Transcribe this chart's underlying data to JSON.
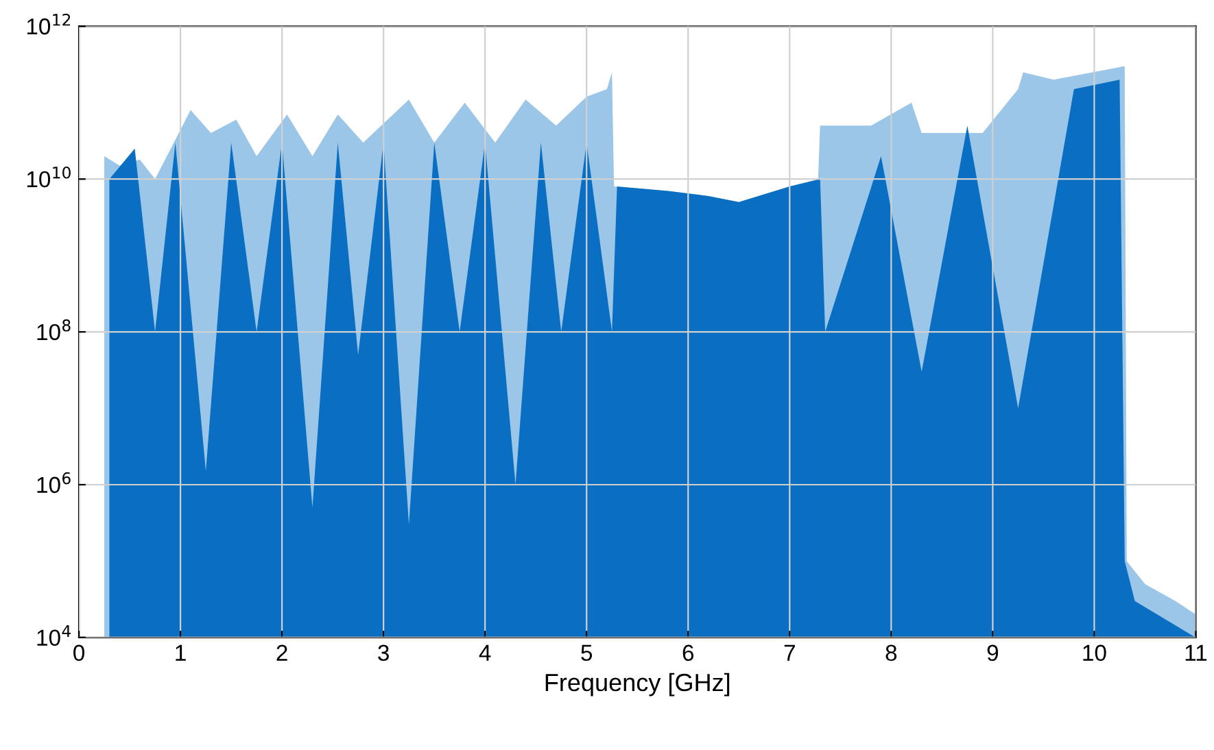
{
  "chart_data": {
    "type": "area",
    "xlabel": "Frequency [GHz]",
    "log": "y",
    "grid": true,
    "xlim": [
      0,
      11
    ],
    "xticks": [
      0,
      1,
      2,
      3,
      4,
      5,
      6,
      7,
      8,
      9,
      10,
      11
    ],
    "ylim": [
      10000,
      1000000000000
    ],
    "yticks": [
      {
        "value": 10000,
        "label": "10$^{4}$"
      },
      {
        "value": 1000000,
        "label": "10$^{6}$"
      },
      {
        "value": 100000000,
        "label": "10$^{8}$"
      },
      {
        "value": 10000000000,
        "label": "10$^{10}$"
      },
      {
        "value": 1000000000000,
        "label": "10$^{12}$"
      }
    ],
    "series": [
      {
        "color": "#9cc6e8",
        "x": [
          0.25,
          0.4,
          0.6,
          0.75,
          1.1,
          1.3,
          1.55,
          1.75,
          2.05,
          2.3,
          2.55,
          2.8,
          3.25,
          3.5,
          3.8,
          4.1,
          4.4,
          4.7,
          5.0,
          5.2,
          5.25,
          5.27,
          5.8,
          6.2,
          6.5,
          7.0,
          7.28,
          7.3,
          7.8,
          8.2,
          8.3,
          8.9,
          9.25,
          9.3,
          9.6,
          10.3,
          10.32,
          10.5,
          10.8,
          11.0
        ],
        "values": [
          20000000000.0,
          15000000000.0,
          18000000000.0,
          10000000000.0,
          80000000000.0,
          40000000000.0,
          60000000000.0,
          20000000000.0,
          70000000000.0,
          20000000000.0,
          70000000000.0,
          30000000000.0,
          110000000000.0,
          30000000000.0,
          100000000000.0,
          30000000000.0,
          110000000000.0,
          50000000000.0,
          120000000000.0,
          150000000000.0,
          250000000000.0,
          8000000000.0,
          7000000000.0,
          6000000000.0,
          5000000000.0,
          8000000000.0,
          10000000000.0,
          50000000000.0,
          50000000000.0,
          100000000000.0,
          40000000000.0,
          40000000000.0,
          150000000000.0,
          250000000000.0,
          200000000000.0,
          300000000000.0,
          100000.0,
          50000.0,
          30000.0,
          20000.0
        ]
      },
      {
        "color": "#0a6fc2",
        "x": [
          0.3,
          0.55,
          0.75,
          0.95,
          1.25,
          1.5,
          1.75,
          2.0,
          2.3,
          2.55,
          2.75,
          3.0,
          3.25,
          3.5,
          3.75,
          4.0,
          4.3,
          4.55,
          4.75,
          5.0,
          5.25,
          5.3,
          5.8,
          6.2,
          6.5,
          7.0,
          7.3,
          7.35,
          7.9,
          8.3,
          8.75,
          9.25,
          9.8,
          10.25,
          10.3,
          10.4,
          11.0
        ],
        "values": [
          10000000000.0,
          25000000000.0,
          100000000.0,
          30000000000.0,
          1500000.0,
          30000000000.0,
          100000000.0,
          30000000000.0,
          500000.0,
          30000000000.0,
          50000000.0,
          30000000000.0,
          300000.0,
          30000000000.0,
          100000000.0,
          30000000000.0,
          1000000.0,
          30000000000.0,
          100000000.0,
          30000000000.0,
          100000000.0,
          8000000000.0,
          7000000000.0,
          6000000000.0,
          5000000000.0,
          8000000000.0,
          10000000000.0,
          100000000.0,
          20000000000.0,
          30000000.0,
          50000000000.0,
          10000000.0,
          150000000000.0,
          200000000000.0,
          100000.0,
          30000.0,
          10000.0
        ]
      }
    ]
  }
}
